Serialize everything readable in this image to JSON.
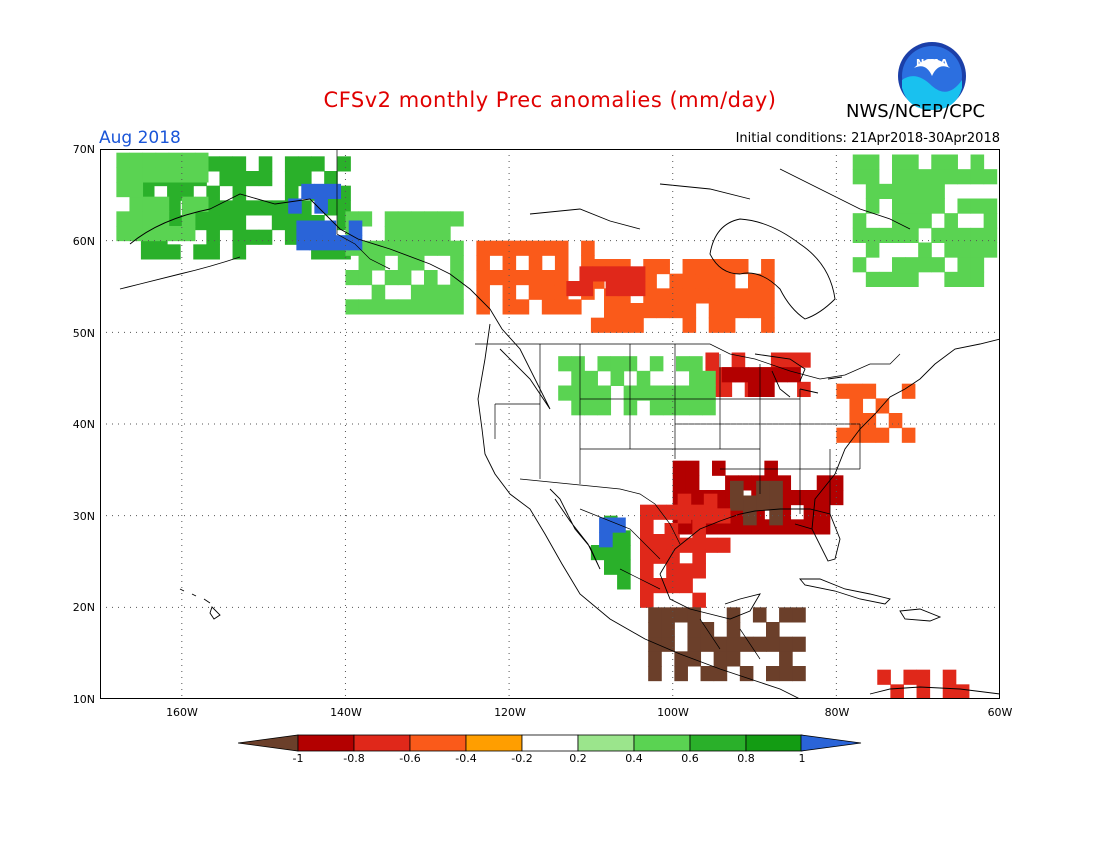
{
  "title": "CFSv2 monthly Prec anomalies (mm/day)",
  "agency": "NWS/NCEP/CPC",
  "logo_text": "NOAA",
  "valid_month": "Aug 2018",
  "initial_conditions": "Initial conditions: 21Apr2018-30Apr2018",
  "map": {
    "lon_range": [
      -170,
      -60
    ],
    "lat_range": [
      10,
      70
    ],
    "lat_labels": [
      "70N",
      "60N",
      "50N",
      "40N",
      "30N",
      "20N",
      "10N"
    ],
    "lon_labels": [
      "160W",
      "140W",
      "120W",
      "100W",
      "80W",
      "60W"
    ],
    "gridlines": "dotted"
  },
  "colorbar": {
    "labels": [
      "-1",
      "-0.8",
      "-0.6",
      "-0.4",
      "-0.2",
      "0.2",
      "0.4",
      "0.6",
      "0.8",
      "1"
    ],
    "colors": [
      "#6b3f2a",
      "#b30000",
      "#e0281a",
      "#fa5a1a",
      "#ff9e00",
      "#ffffff",
      "#9be58c",
      "#5ad352",
      "#2ab02a",
      "#139c13",
      "#2a64d8"
    ]
  },
  "anomaly_regions": [
    {
      "region": "Alaska interior / Yukon",
      "lon": [
        -165,
        -140
      ],
      "lat": [
        58,
        69
      ],
      "class": "0.6"
    },
    {
      "region": "Alaska west coast",
      "lon": [
        -168,
        -158
      ],
      "lat": [
        60,
        68
      ],
      "class": "0.4"
    },
    {
      "region": "SE Alaska / BC coast",
      "lon": [
        -140,
        -126
      ],
      "lat": [
        52,
        62
      ],
      "class": "0.4"
    },
    {
      "region": "Yukon peak",
      "lon": [
        -147,
        -142
      ],
      "lat": [
        63,
        65
      ],
      "class": "1"
    },
    {
      "region": "Alaska Gulf coast",
      "lon": [
        -146,
        -139
      ],
      "lat": [
        59,
        61
      ],
      "class": "1"
    },
    {
      "region": "Western Canada prairies",
      "lon": [
        -124,
        -110
      ],
      "lat": [
        52,
        60
      ],
      "class": "-0.4"
    },
    {
      "region": "Central Canada",
      "lon": [
        -110,
        -88
      ],
      "lat": [
        50,
        58
      ],
      "class": "-0.4"
    },
    {
      "region": "Manitoba core",
      "lon": [
        -113,
        -104
      ],
      "lat": [
        54,
        57
      ],
      "class": "-0.6"
    },
    {
      "region": "Upper Midwest",
      "lon": [
        -96,
        -84
      ],
      "lat": [
        43,
        47
      ],
      "class": "-0.6"
    },
    {
      "region": "Great Lakes",
      "lon": [
        -94,
        -86
      ],
      "lat": [
        43,
        46
      ],
      "class": "-0.8"
    },
    {
      "region": "Northern Plains",
      "lon": [
        -114,
        -96
      ],
      "lat": [
        41,
        47
      ],
      "class": "0.4"
    },
    {
      "region": "Gulf Coast / Southeast",
      "lon": [
        -100,
        -80
      ],
      "lat": [
        28,
        36
      ],
      "class": "-0.8"
    },
    {
      "region": "Mississippi delta",
      "lon": [
        -93,
        -88
      ],
      "lat": [
        29,
        33
      ],
      "class": "-1"
    },
    {
      "region": "Texas coast",
      "lon": [
        -101,
        -94
      ],
      "lat": [
        26,
        32
      ],
      "class": "-0.6"
    },
    {
      "region": "Northeast Mexico",
      "lon": [
        -104,
        -97
      ],
      "lat": [
        20,
        30
      ],
      "class": "-0.6"
    },
    {
      "region": "Southern Mexico / Central America",
      "lon": [
        -103,
        -84
      ],
      "lat": [
        12,
        20
      ],
      "class": "-1"
    },
    {
      "region": "Mid-Atlantic / Northeast",
      "lon": [
        -80,
        -72
      ],
      "lat": [
        38,
        43
      ],
      "class": "-0.4"
    },
    {
      "region": "Sierra Madre Occidental",
      "lon": [
        -110,
        -106
      ],
      "lat": [
        22,
        30
      ],
      "class": "0.6"
    },
    {
      "region": "Mexico west coast",
      "lon": [
        -109,
        -107
      ],
      "lat": [
        25,
        29
      ],
      "class": "1"
    },
    {
      "region": "Northern Quebec / Labrador",
      "lon": [
        -78,
        -62
      ],
      "lat": [
        55,
        68
      ],
      "class": "0.4"
    },
    {
      "region": "Caribbean south",
      "lon": [
        -75,
        -64
      ],
      "lat": [
        10,
        12
      ],
      "class": "-0.6"
    }
  ]
}
